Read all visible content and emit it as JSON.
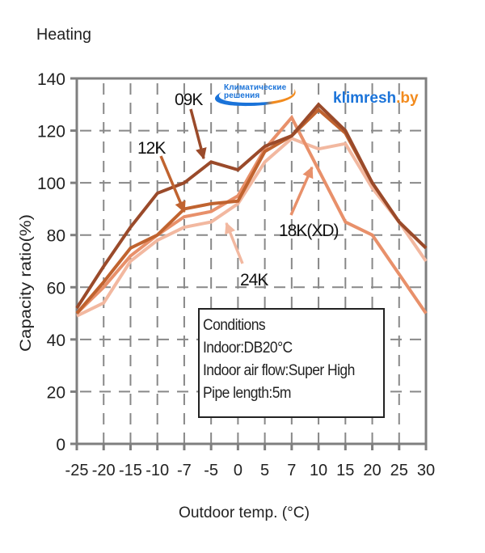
{
  "chart_data": {
    "type": "line",
    "title": "Heating",
    "xlabel": "Outdoor temp. (°C)",
    "ylabel": "Capacity ratio(%)",
    "x": [
      "-25",
      "-20",
      "-15",
      "-10",
      "-7",
      "-5",
      "0",
      "5",
      "7",
      "10",
      "15",
      "20",
      "25",
      "30"
    ],
    "yticks": [
      "0",
      "20",
      "40",
      "60",
      "80",
      "100",
      "120",
      "140"
    ],
    "ylim": [
      0,
      140
    ],
    "grid": true,
    "series": [
      {
        "name": "09K",
        "color": "#9a4a2a",
        "values": [
          52,
          68,
          83,
          96,
          100,
          108,
          105,
          114,
          118,
          130,
          120,
          100,
          85,
          75
        ]
      },
      {
        "name": "12K",
        "color": "#c0632f",
        "values": [
          50,
          62,
          75,
          80,
          90,
          92,
          93,
          112,
          118,
          128,
          119,
          100,
          85,
          75
        ]
      },
      {
        "name": "18K(XD)",
        "color": "#e8906a",
        "values": [
          50,
          60,
          72,
          80,
          87,
          89,
          95,
          113,
          125,
          105,
          85,
          80,
          65,
          50
        ]
      },
      {
        "name": "24K",
        "color": "#f2b8a0",
        "values": [
          49,
          54,
          70,
          78,
          83,
          85,
          92,
          108,
          117,
          113,
          115,
          98,
          85,
          70
        ]
      }
    ],
    "annotations": [
      {
        "label": "09K",
        "target_series": "09K"
      },
      {
        "label": "12K",
        "target_series": "12K"
      },
      {
        "label": "18K(XD)",
        "target_series": "18K(XD)"
      },
      {
        "label": "24K",
        "target_series": "24K"
      }
    ]
  },
  "conditions": {
    "lines": [
      "Conditions",
      "Indoor:DB20°C",
      "Indoor air flow:Super High",
      "Pipe length:5m"
    ]
  },
  "watermark": {
    "brand_line1": "Климатические",
    "brand_line2": "решения",
    "site_main": "klimresh",
    "site_tld": ".by",
    "blue": "#1a73d9",
    "orange": "#f28b1e"
  }
}
